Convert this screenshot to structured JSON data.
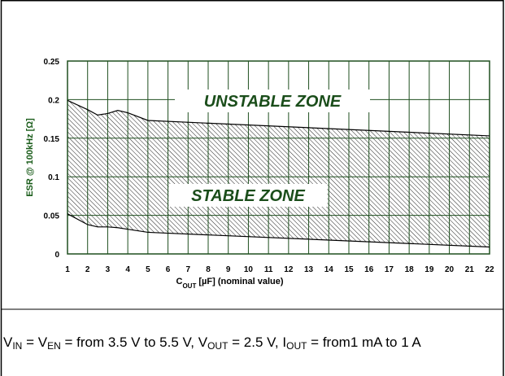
{
  "chart_data": {
    "type": "band",
    "x": [
      1,
      2,
      2.5,
      3,
      3.5,
      4,
      5,
      22
    ],
    "series": [
      {
        "color": "#000000",
        "values": [
          0.199,
          0.187,
          0.18,
          0.182,
          0.186,
          0.183,
          0.173,
          0.153
        ]
      },
      {
        "color": "#000000",
        "values": [
          0.052,
          0.038,
          0.035,
          0.035,
          0.034,
          0.032,
          0.028,
          0.009
        ]
      }
    ],
    "xlim": [
      1,
      22
    ],
    "xticks": [
      1,
      2,
      3,
      4,
      5,
      6,
      7,
      8,
      9,
      10,
      11,
      12,
      13,
      14,
      15,
      16,
      17,
      18,
      19,
      20,
      21,
      22
    ],
    "ylim": [
      0,
      0.25
    ],
    "yticks": [
      0,
      0.05,
      0.1,
      0.15,
      0.2,
      0.25
    ],
    "grid": true,
    "grid_color": "#1f4f1f",
    "ylabel": "ESR @ 100kHz [Ω]",
    "xlabel": [
      "C",
      "OUT",
      " [µF] (nominal value)"
    ],
    "annotations": [
      "UNSTABLE ZONE",
      "STABLE ZONE"
    ],
    "caption": [
      "V",
      "IN",
      " = V",
      "EN",
      " = from 3.5 V to 5.5 V, V",
      "OUT",
      " = 2.5 V, I",
      "OUT",
      " = from1 mA to 1 A"
    ]
  }
}
